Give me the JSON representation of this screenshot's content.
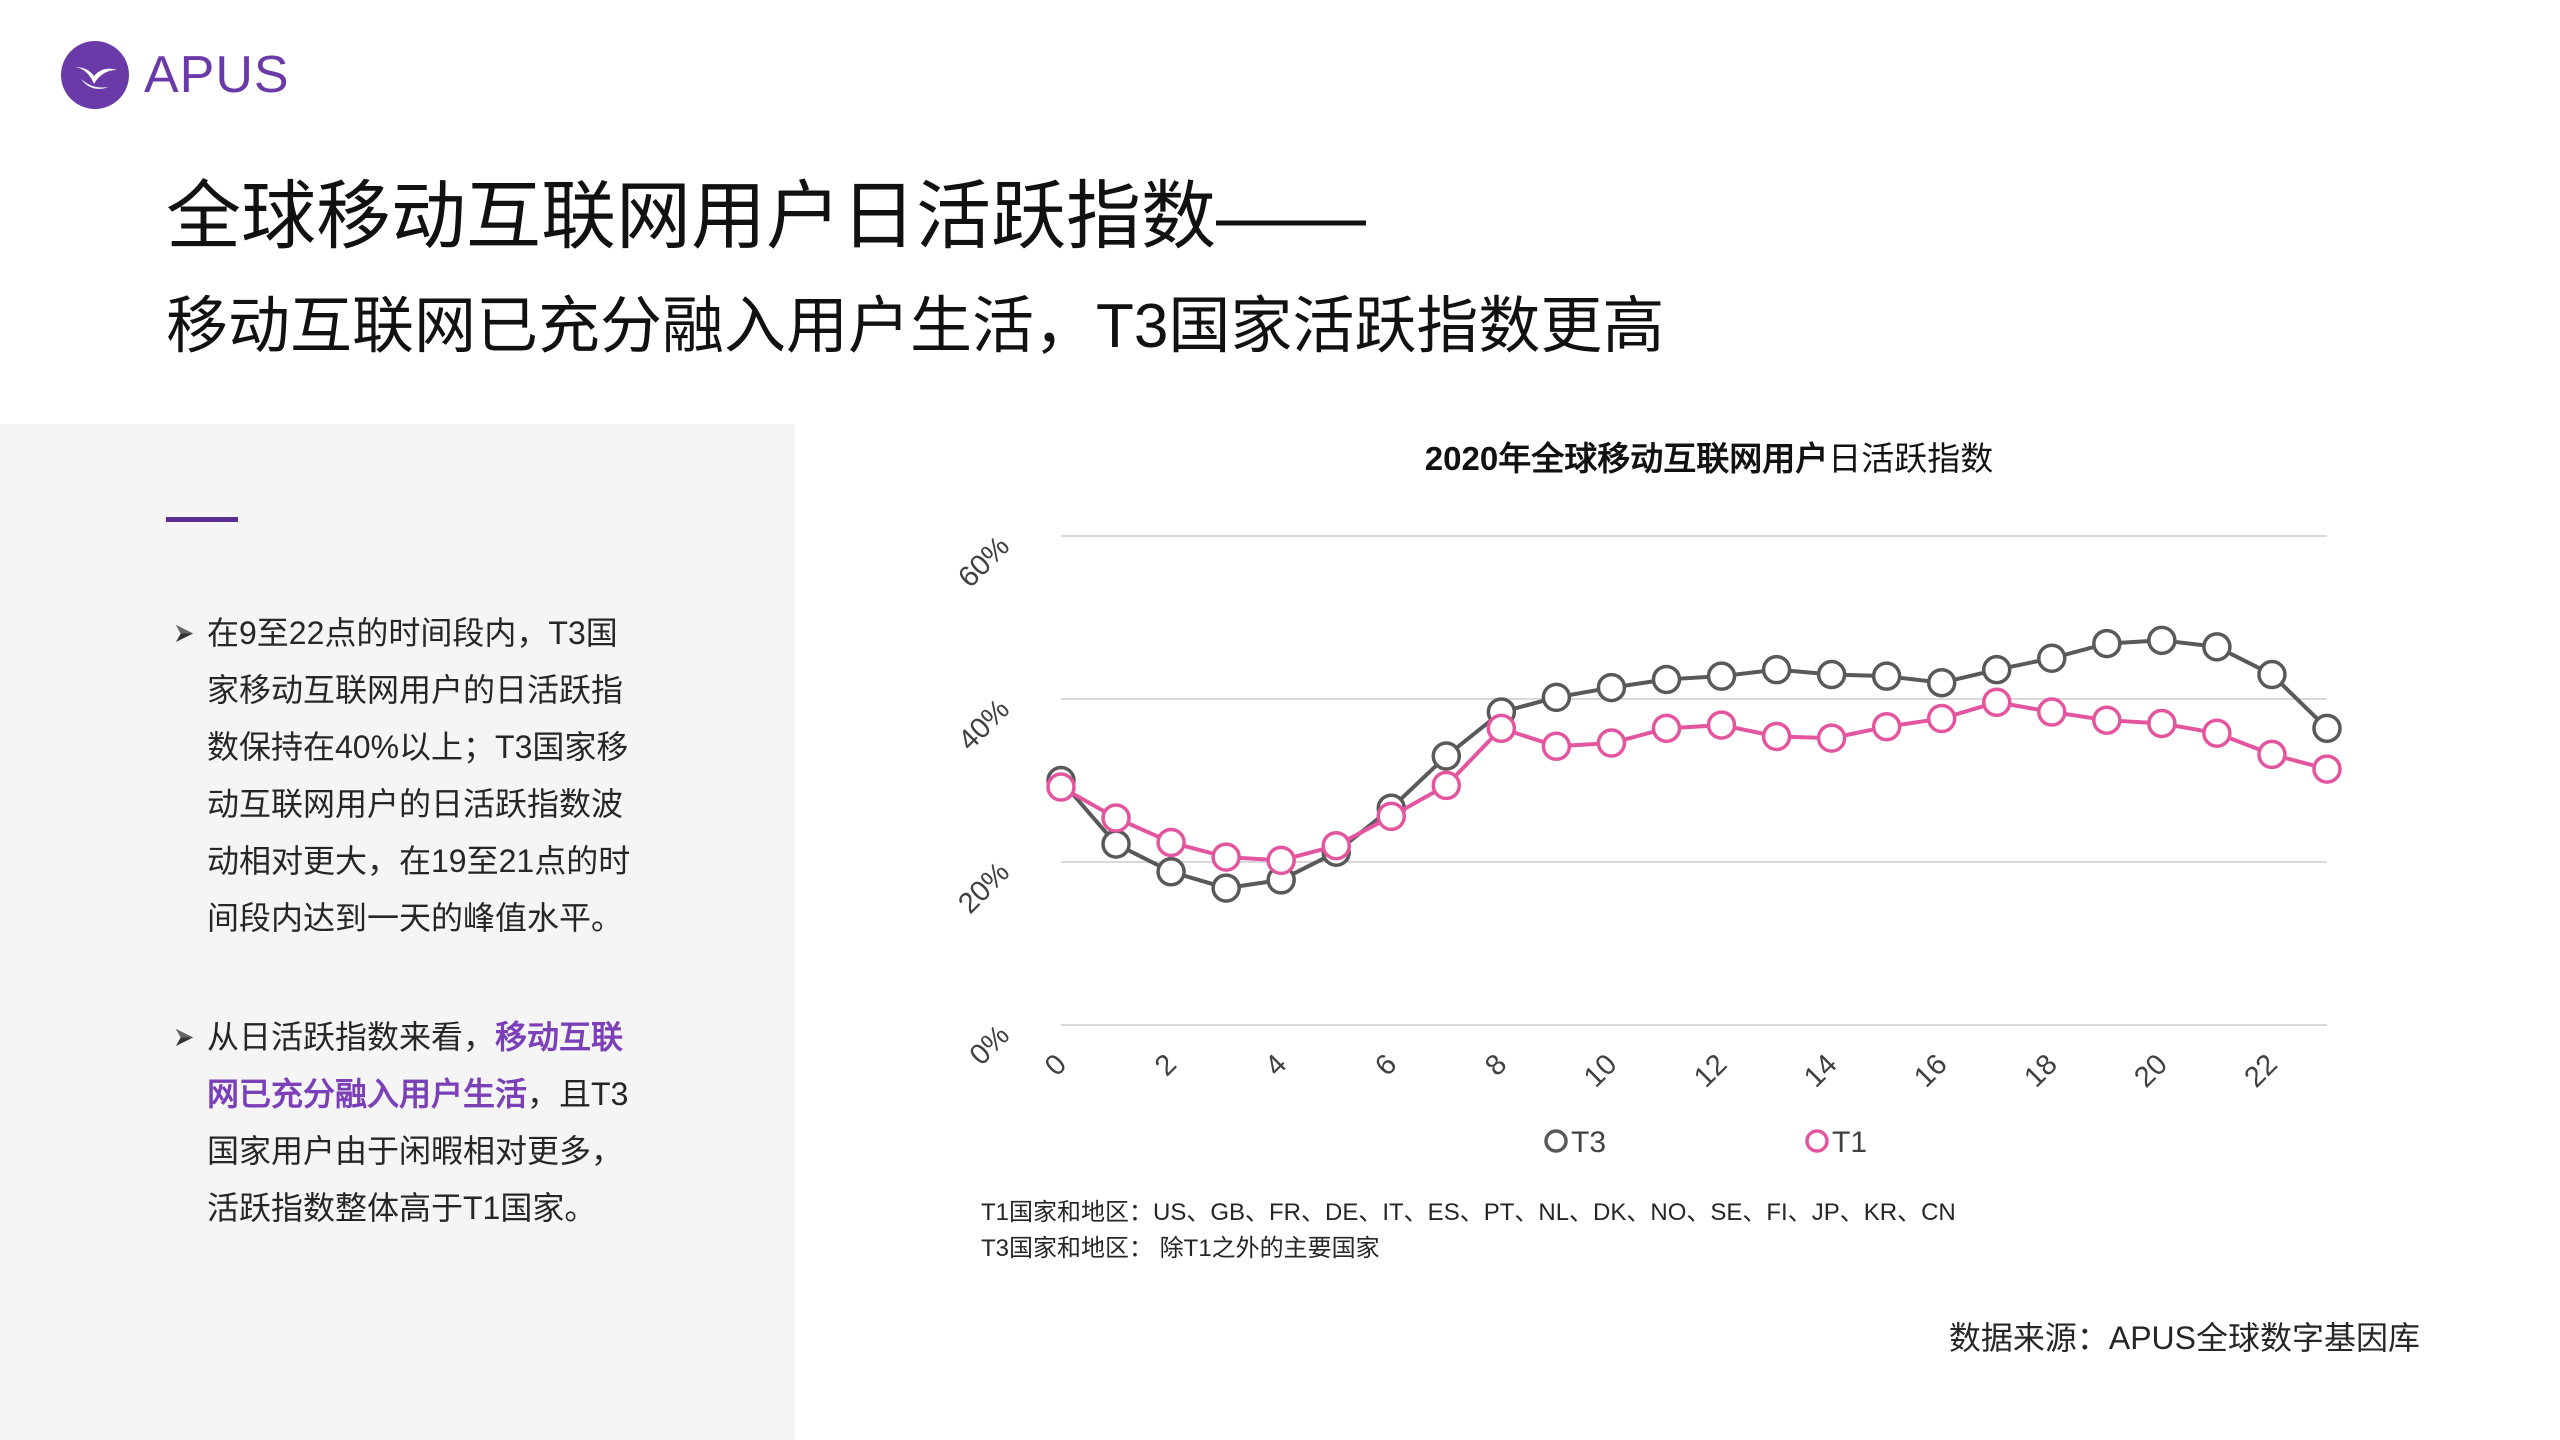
{
  "brand": {
    "logo_text": "APUS",
    "logo_icon": "apus-logo-icon",
    "color": "#6a3aa8"
  },
  "header": {
    "title": "全球移动互联网用户日活跃指数——",
    "subtitle": "移动互联网已充分融入用户生活，T3国家活跃指数更高"
  },
  "sidebar": {
    "accent_color": "#5b2d8e",
    "highlight_color": "#7b3fb8",
    "bullet_icon": "arrowhead-bullet-icon",
    "bullets": [
      {
        "lines": [
          [
            {
              "text": "在9至22点的时间段内，T3国"
            }
          ],
          [
            {
              "text": "家移动互联网用户的日活跃指"
            }
          ],
          [
            {
              "text": "数保持在40%以上；T3国家移"
            }
          ],
          [
            {
              "text": "动互联网用户的日活跃指数波"
            }
          ],
          [
            {
              "text": "动相对更大，在19至21点的时"
            }
          ],
          [
            {
              "text": "间段内达到一天的峰值水平。"
            }
          ]
        ]
      },
      {
        "lines": [
          [
            {
              "text": "从日活跃指数来看，"
            },
            {
              "text": "移动互联",
              "highlight": true
            }
          ],
          [
            {
              "text": "网已充分融入用户生活",
              "highlight": true
            },
            {
              "text": "，且T3"
            }
          ],
          [
            {
              "text": "国家用户由于闲暇相对更多，"
            }
          ],
          [
            {
              "text": "活跃指数整体高于T1国家。"
            }
          ]
        ]
      }
    ]
  },
  "chart_data": {
    "type": "line",
    "title": "2020年全球移动互联网用户日活跃指数",
    "title_emphasis": "移动互联网用户",
    "x": [
      0,
      1,
      2,
      3,
      4,
      5,
      6,
      7,
      8,
      9,
      10,
      11,
      12,
      13,
      14,
      15,
      16,
      17,
      18,
      19,
      20,
      21,
      22,
      23
    ],
    "x_tick_labels": [
      "0",
      "2",
      "4",
      "6",
      "8",
      "10",
      "12",
      "14",
      "16",
      "18",
      "20",
      "22"
    ],
    "ylim": [
      0,
      60
    ],
    "y_ticks": [
      0,
      20,
      40,
      60
    ],
    "y_tick_labels": [
      "0%",
      "20%",
      "40%",
      "60%"
    ],
    "grid": true,
    "legend": "bottom",
    "series": [
      {
        "name": "T3",
        "color": "#595959",
        "values": [
          30,
          22.2,
          18.8,
          16.8,
          17.8,
          21.2,
          26.6,
          33,
          38.4,
          40.2,
          41.4,
          42.4,
          42.8,
          43.6,
          43,
          42.8,
          42,
          43.6,
          45,
          46.8,
          47.2,
          46.4,
          43,
          36.4
        ]
      },
      {
        "name": "T1",
        "color": "#e4559f",
        "values": [
          29.2,
          25.4,
          22.4,
          20.6,
          20.2,
          22,
          25.6,
          29.4,
          36.4,
          34.2,
          34.6,
          36.4,
          36.8,
          35.4,
          35.2,
          36.6,
          37.6,
          39.6,
          38.4,
          37.4,
          37,
          35.8,
          33.2,
          31.4
        ]
      }
    ]
  },
  "footnotes": [
    "T1国家和地区：US、GB、FR、DE、IT、ES、PT、NL、DK、NO、SE、FI、JP、KR、CN",
    "T3国家和地区： 除T1之外的主要国家"
  ],
  "source": "数据来源：APUS全球数字基因库"
}
